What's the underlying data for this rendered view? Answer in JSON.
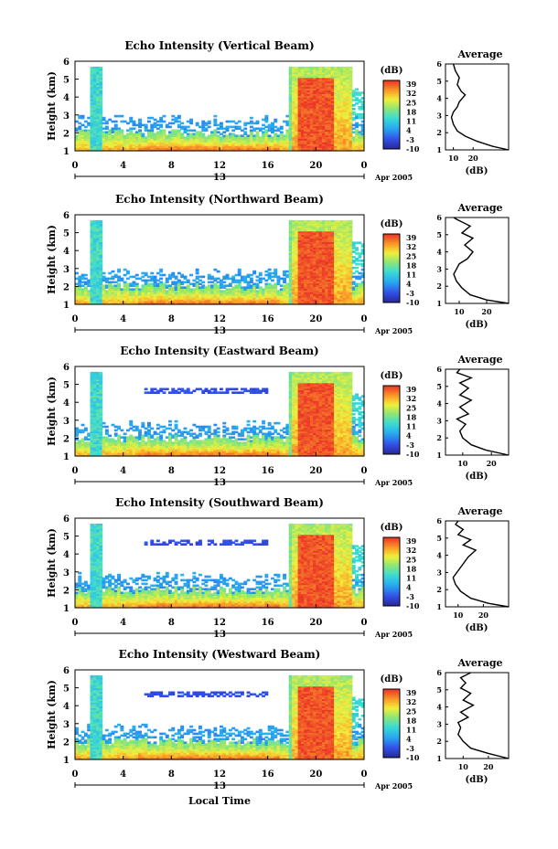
{
  "figure": {
    "date_label": "Apr 2005",
    "xlabel": "Local Time",
    "day_label": "13",
    "ylabel": "Height (km)",
    "avg_xlabel": "(dB)",
    "colorbar_unit": "(dB)"
  },
  "chart_data": [
    {
      "type": "heatmap",
      "title": "Echo Intensity (Vertical Beam)",
      "xlabel": "",
      "ylabel": "Height (km)",
      "x_ticks": [
        "0",
        "4",
        "8",
        "12",
        "16",
        "20",
        "0"
      ],
      "xlim": [
        0,
        24
      ],
      "y_ticks": [
        "1",
        "2",
        "3",
        "4",
        "5",
        "6"
      ],
      "ylim": [
        1,
        6
      ],
      "colorbar": {
        "unit": "(dB)",
        "ticks": [
          "39",
          "32",
          "25",
          "18",
          "11",
          "4",
          "-3",
          "-10"
        ],
        "range": [
          -10,
          39
        ]
      },
      "average": {
        "title": "Average",
        "xlabel": "(dB)",
        "x_ticks": [
          "10",
          "20"
        ],
        "xlim": [
          6,
          38
        ],
        "profile": [
          [
            38,
            1.0
          ],
          [
            30,
            1.2
          ],
          [
            22,
            1.5
          ],
          [
            16,
            1.8
          ],
          [
            12,
            2.1
          ],
          [
            10,
            2.5
          ],
          [
            9,
            2.9
          ],
          [
            10,
            3.2
          ],
          [
            12,
            3.5
          ],
          [
            13,
            3.8
          ],
          [
            16,
            4.2
          ],
          [
            14,
            4.4
          ],
          [
            12,
            4.8
          ],
          [
            13,
            5.2
          ],
          [
            11,
            5.6
          ],
          [
            10,
            6.0
          ]
        ]
      }
    },
    {
      "type": "heatmap",
      "title": "Echo Intensity (Northward Beam)",
      "xlabel": "",
      "ylabel": "Height (km)",
      "x_ticks": [
        "0",
        "4",
        "8",
        "12",
        "16",
        "20",
        "0"
      ],
      "xlim": [
        0,
        24
      ],
      "y_ticks": [
        "1",
        "2",
        "3",
        "4",
        "5",
        "6"
      ],
      "ylim": [
        1,
        6
      ],
      "colorbar": {
        "unit": "(dB)",
        "ticks": [
          "39",
          "32",
          "25",
          "18",
          "11",
          "4",
          "-3",
          "-10"
        ],
        "range": [
          -10,
          39
        ]
      },
      "average": {
        "title": "Average",
        "xlabel": "(dB)",
        "x_ticks": [
          "10",
          "20"
        ],
        "xlim": [
          5,
          28
        ],
        "profile": [
          [
            28,
            1.0
          ],
          [
            20,
            1.2
          ],
          [
            14,
            1.5
          ],
          [
            11,
            1.9
          ],
          [
            9,
            2.3
          ],
          [
            8,
            2.7
          ],
          [
            9,
            3.0
          ],
          [
            10,
            3.3
          ],
          [
            13,
            3.6
          ],
          [
            15,
            4.0
          ],
          [
            12,
            4.4
          ],
          [
            15,
            4.8
          ],
          [
            11,
            5.1
          ],
          [
            14,
            5.5
          ],
          [
            9,
            5.9
          ],
          [
            8,
            6.0
          ]
        ]
      }
    },
    {
      "type": "heatmap",
      "title": "Echo Intensity (Eastward Beam)",
      "xlabel": "",
      "ylabel": "Height (km)",
      "x_ticks": [
        "0",
        "4",
        "8",
        "12",
        "16",
        "20",
        "0"
      ],
      "xlim": [
        0,
        24
      ],
      "y_ticks": [
        "1",
        "2",
        "3",
        "4",
        "5",
        "6"
      ],
      "ylim": [
        1,
        6
      ],
      "colorbar": {
        "unit": "(dB)",
        "ticks": [
          "39",
          "32",
          "25",
          "18",
          "11",
          "4",
          "-3",
          "-10"
        ],
        "range": [
          -10,
          39
        ]
      },
      "average": {
        "title": "Average",
        "xlabel": "(dB)",
        "x_ticks": [
          "10",
          "20"
        ],
        "xlim": [
          4,
          26
        ],
        "profile": [
          [
            26,
            1.0
          ],
          [
            18,
            1.3
          ],
          [
            13,
            1.6
          ],
          [
            10,
            2.0
          ],
          [
            9,
            2.4
          ],
          [
            11,
            2.8
          ],
          [
            8,
            3.1
          ],
          [
            12,
            3.4
          ],
          [
            9,
            3.8
          ],
          [
            13,
            4.2
          ],
          [
            9,
            4.5
          ],
          [
            12,
            4.9
          ],
          [
            9,
            5.2
          ],
          [
            13,
            5.5
          ],
          [
            8,
            5.8
          ],
          [
            9,
            6.0
          ]
        ]
      }
    },
    {
      "type": "heatmap",
      "title": "Echo Intensity (Southward Beam)",
      "xlabel": "",
      "ylabel": "Height (km)",
      "x_ticks": [
        "0",
        "4",
        "8",
        "12",
        "16",
        "20",
        "0"
      ],
      "xlim": [
        0,
        24
      ],
      "y_ticks": [
        "1",
        "2",
        "3",
        "4",
        "5",
        "6"
      ],
      "ylim": [
        1,
        6
      ],
      "colorbar": {
        "unit": "(dB)",
        "ticks": [
          "39",
          "32",
          "25",
          "18",
          "11",
          "4",
          "-3",
          "-10"
        ],
        "range": [
          -10,
          39
        ]
      },
      "average": {
        "title": "Average",
        "xlabel": "(dB)",
        "x_ticks": [
          "10",
          "20"
        ],
        "xlim": [
          5,
          30
        ],
        "profile": [
          [
            30,
            1.0
          ],
          [
            22,
            1.2
          ],
          [
            15,
            1.5
          ],
          [
            11,
            1.9
          ],
          [
            9,
            2.3
          ],
          [
            8,
            2.7
          ],
          [
            10,
            3.1
          ],
          [
            12,
            3.5
          ],
          [
            14,
            3.9
          ],
          [
            17,
            4.3
          ],
          [
            12,
            4.6
          ],
          [
            15,
            4.9
          ],
          [
            10,
            5.2
          ],
          [
            12,
            5.5
          ],
          [
            9,
            5.8
          ],
          [
            10,
            6.0
          ]
        ]
      }
    },
    {
      "type": "heatmap",
      "title": "Echo Intensity (Westward Beam)",
      "xlabel": "Local Time",
      "ylabel": "Height (km)",
      "x_ticks": [
        "0",
        "4",
        "8",
        "12",
        "16",
        "20",
        "0"
      ],
      "xlim": [
        0,
        24
      ],
      "y_ticks": [
        "1",
        "2",
        "3",
        "4",
        "5",
        "6"
      ],
      "ylim": [
        1,
        6
      ],
      "colorbar": {
        "unit": "(dB)",
        "ticks": [
          "39",
          "32",
          "25",
          "18",
          "11",
          "4",
          "-3",
          "-10"
        ],
        "range": [
          -10,
          39
        ]
      },
      "average": {
        "title": "Average",
        "xlabel": "(dB)",
        "x_ticks": [
          "10",
          "20"
        ],
        "xlim": [
          3,
          28
        ],
        "profile": [
          [
            28,
            1.0
          ],
          [
            20,
            1.3
          ],
          [
            13,
            1.6
          ],
          [
            10,
            2.0
          ],
          [
            8,
            2.4
          ],
          [
            9,
            2.8
          ],
          [
            8,
            3.1
          ],
          [
            12,
            3.4
          ],
          [
            9,
            3.7
          ],
          [
            14,
            4.1
          ],
          [
            10,
            4.4
          ],
          [
            13,
            4.8
          ],
          [
            9,
            5.1
          ],
          [
            11,
            5.4
          ],
          [
            9,
            5.7
          ],
          [
            13,
            6.0
          ]
        ]
      }
    }
  ]
}
